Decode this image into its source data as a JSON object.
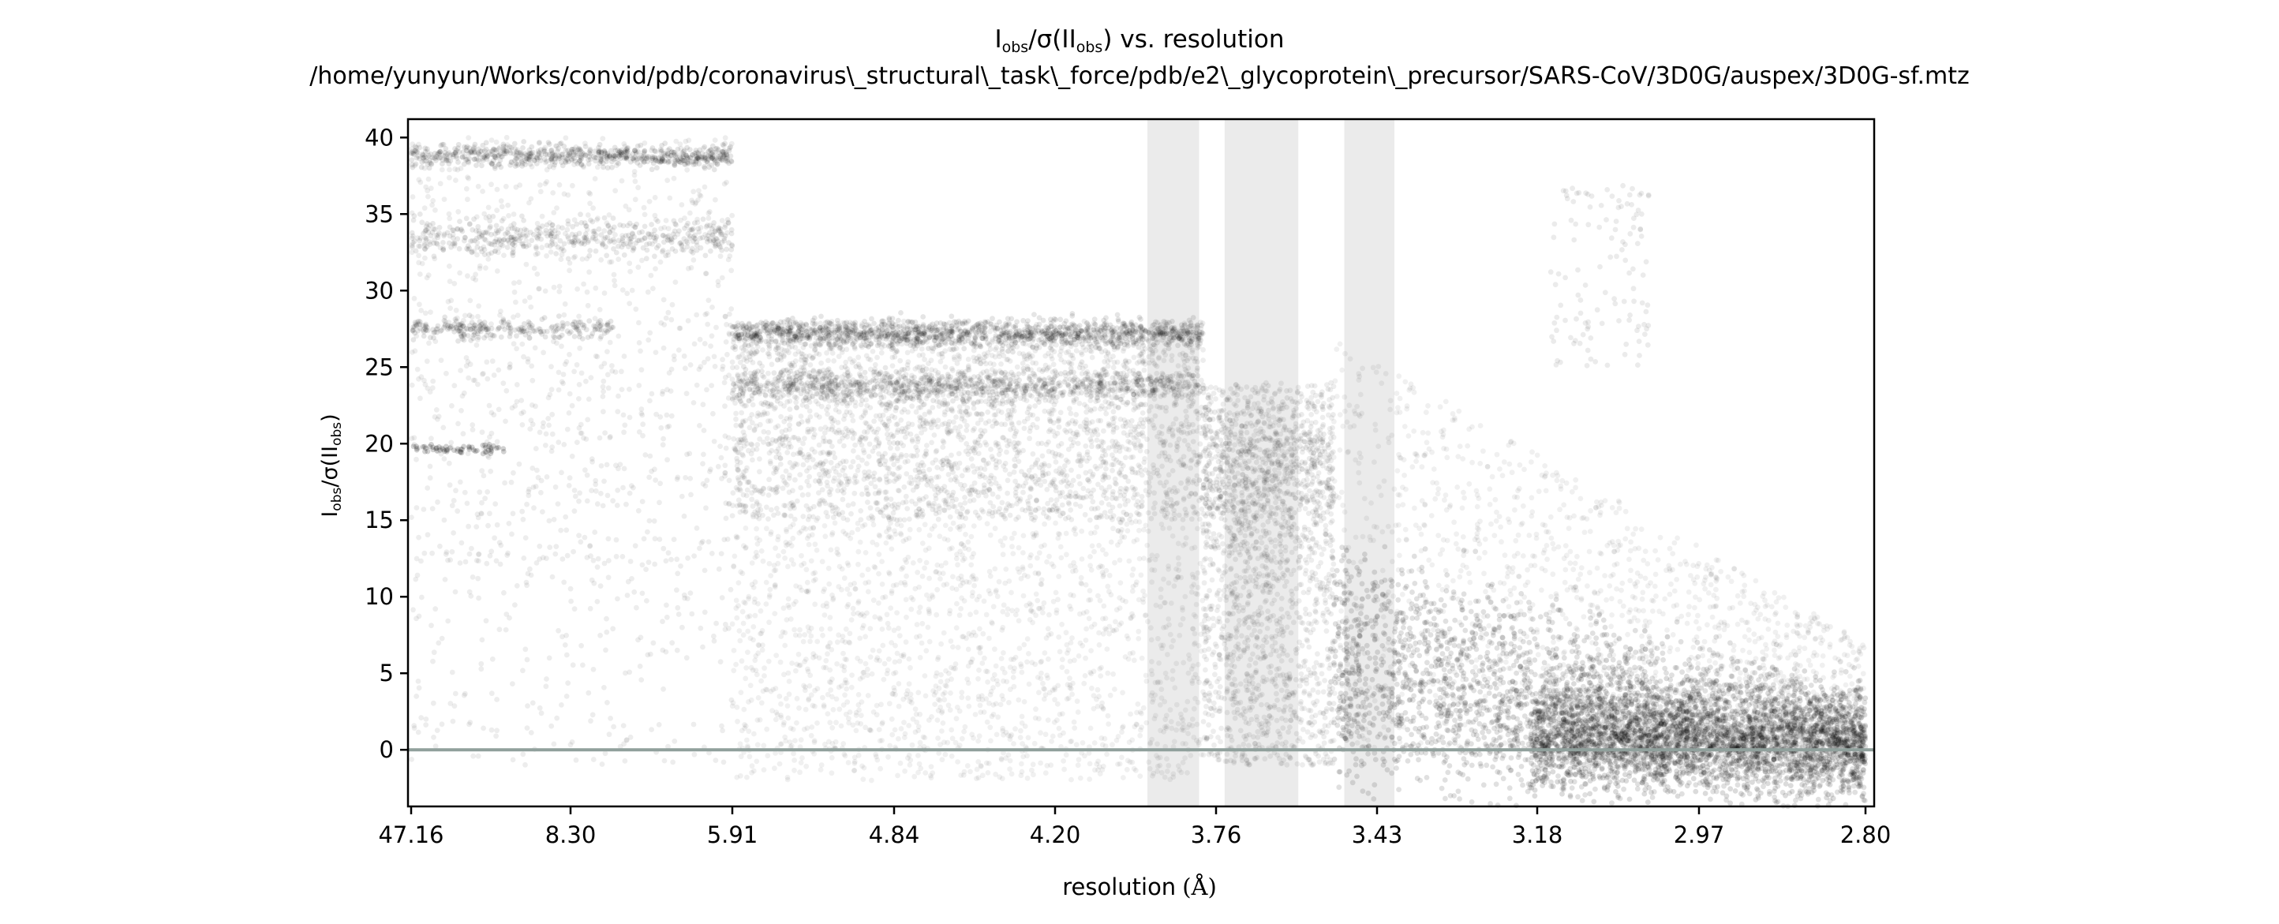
{
  "chart_data": {
    "type": "scatter",
    "title_main": "vs. resolution",
    "title_path": "/home/yunyun/Works/convid/pdb/coronavirus\\_structural\\_task\\_force/pdb/e2\\_glycoprotein\\_precursor/SARS-CoV/3D0G/auspex/3D0G-sf.mtz",
    "y_label": {
      "I": "I",
      "obs": "obs",
      "sep": "/σ(I",
      "close": ")"
    },
    "xlabel": "resolution",
    "xlabel_unit": "(Å)",
    "x_ticks": [
      "47.16",
      "8.30",
      "5.91",
      "4.84",
      "4.20",
      "3.76",
      "3.43",
      "3.18",
      "2.97",
      "2.80"
    ],
    "y_ticks": [
      0,
      5,
      10,
      15,
      20,
      25,
      30,
      35,
      40
    ],
    "ylim": [
      -3.7,
      41.2
    ],
    "x_axis": "1/d^2 scale, high-resolution to the right",
    "reference_line_y": 0,
    "ice_ring_bands_resolution": [
      [
        3.93,
        3.8
      ],
      [
        3.74,
        3.58
      ],
      [
        3.49,
        3.4
      ]
    ],
    "clusters": [
      {
        "d_range": [
          47.16,
          5.91
        ],
        "y_range": [
          -1,
          39.5
        ],
        "density": "high near 39, 34, 27.5"
      },
      {
        "d_range": [
          5.91,
          3.79
        ],
        "y_range": [
          -2,
          28
        ],
        "density": "high near 27.5 and 24"
      },
      {
        "d_range": [
          3.79,
          3.51
        ],
        "y_range": [
          -2,
          24.3
        ],
        "density": "medium"
      },
      {
        "d_range": [
          3.51,
          2.8
        ],
        "y_range": [
          -3.5,
          37
        ],
        "density": "dense near 0 at high resolution"
      }
    ],
    "colors": {
      "points": "#000000",
      "ice_rings": "#ebebeb",
      "zero_line": "#90a09c"
    }
  }
}
